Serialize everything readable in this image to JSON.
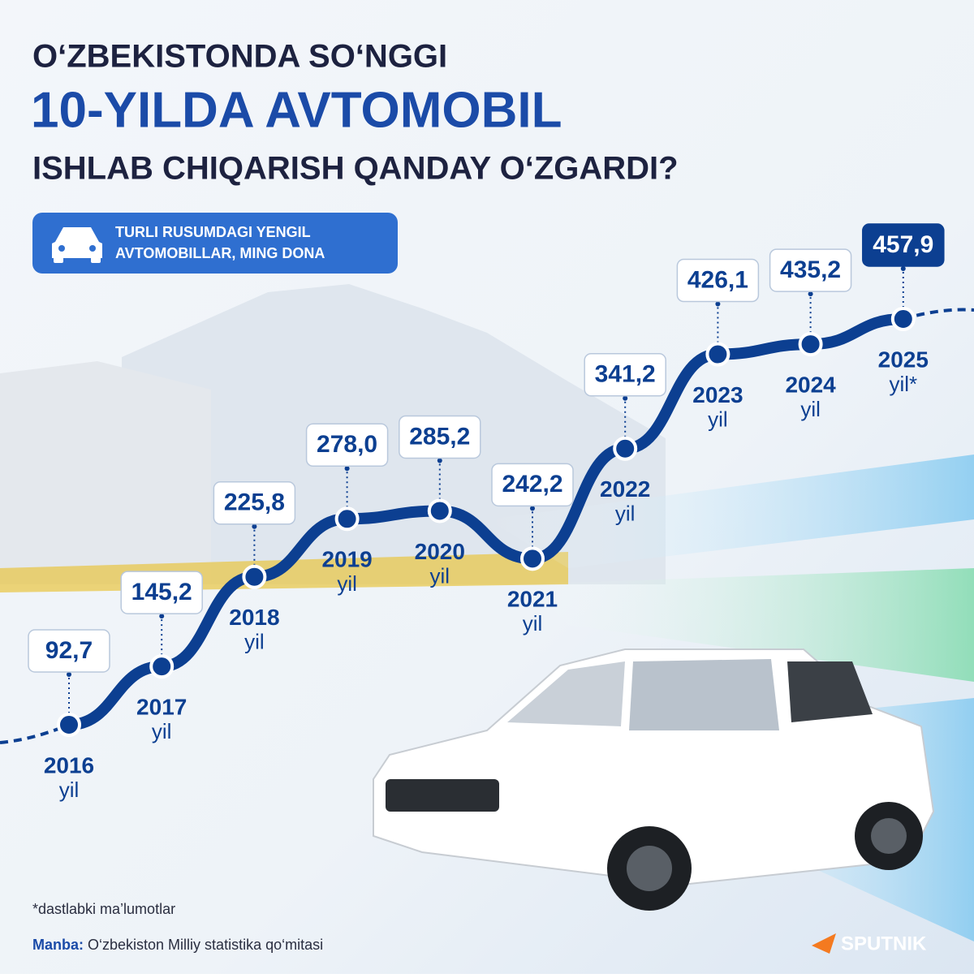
{
  "chart_data": {
    "type": "line",
    "title_lines": [
      "O‘ZBEKISTONDA SO‘NGGI",
      "10-YILDA AVTOMOBIL",
      "ISHLAB CHIQARISH QANDAY O‘ZGARDI?"
    ],
    "subtitle_lines": [
      "TURLI RUSUMDAGI YENGIL",
      "AVTOMOBILLAR, MING DONA"
    ],
    "categories": [
      "2016",
      "2017",
      "2018",
      "2019",
      "2020",
      "2021",
      "2022",
      "2023",
      "2024",
      "2025"
    ],
    "category_sublabels": [
      "yil",
      "yil",
      "yil",
      "yil",
      "yil",
      "yil",
      "yil",
      "yil",
      "yil",
      "yil*"
    ],
    "values": [
      92.7,
      145.2,
      225.8,
      278.0,
      285.2,
      242.2,
      341.2,
      426.1,
      435.2,
      457.9
    ],
    "value_labels": [
      "92,7",
      "145,2",
      "225,8",
      "278,0",
      "285,2",
      "242,2",
      "341,2",
      "426,1",
      "435,2",
      "457,9"
    ],
    "color": "#0c3f91",
    "footnote": "*dastlabki ma’lumotlar",
    "source_label": "Manba:",
    "source": "O‘zbekiston Milliy statistika qo‘mitasi",
    "brand": "SPUTNIK"
  }
}
